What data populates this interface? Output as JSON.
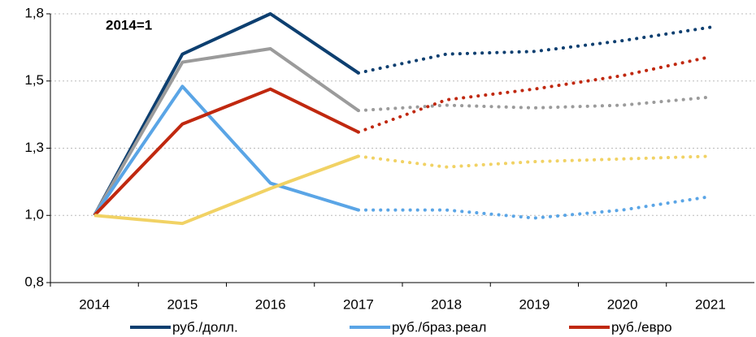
{
  "chart_data": {
    "type": "line",
    "annotation": "2014=1",
    "categories": [
      "2014",
      "2015",
      "2016",
      "2017",
      "2018",
      "2019",
      "2020",
      "2021"
    ],
    "dotted_from": "2017",
    "series": [
      {
        "name": "руб./долл.",
        "color": "#0d3f70",
        "values": [
          1.0,
          1.6,
          1.75,
          1.53,
          1.6,
          1.61,
          1.65,
          1.7
        ]
      },
      {
        "color": "#9b9b9b",
        "values": [
          1.0,
          1.57,
          1.62,
          1.39,
          1.41,
          1.4,
          1.41,
          1.44
        ]
      },
      {
        "name": "руб./браз.реал",
        "color": "#5aa5e6",
        "values": [
          1.0,
          1.48,
          1.12,
          1.02,
          1.02,
          0.99,
          1.02,
          1.07
        ]
      },
      {
        "name": "руб./евро",
        "color": "#c0280f",
        "values": [
          1.0,
          1.34,
          1.47,
          1.31,
          1.43,
          1.47,
          1.52,
          1.59
        ]
      },
      {
        "color": "#f1d264",
        "values": [
          1.0,
          0.97,
          1.1,
          1.22,
          1.18,
          1.2,
          1.21,
          1.22
        ]
      }
    ],
    "ylim": [
      0.75,
      1.75
    ],
    "yticks": [
      {
        "value": 0.75,
        "label": "0,8"
      },
      {
        "value": 1.0,
        "label": "1,0"
      },
      {
        "value": 1.25,
        "label": "1,3"
      },
      {
        "value": 1.5,
        "label": "1,5"
      },
      {
        "value": 1.75,
        "label": "1,8"
      }
    ],
    "grid": true
  }
}
